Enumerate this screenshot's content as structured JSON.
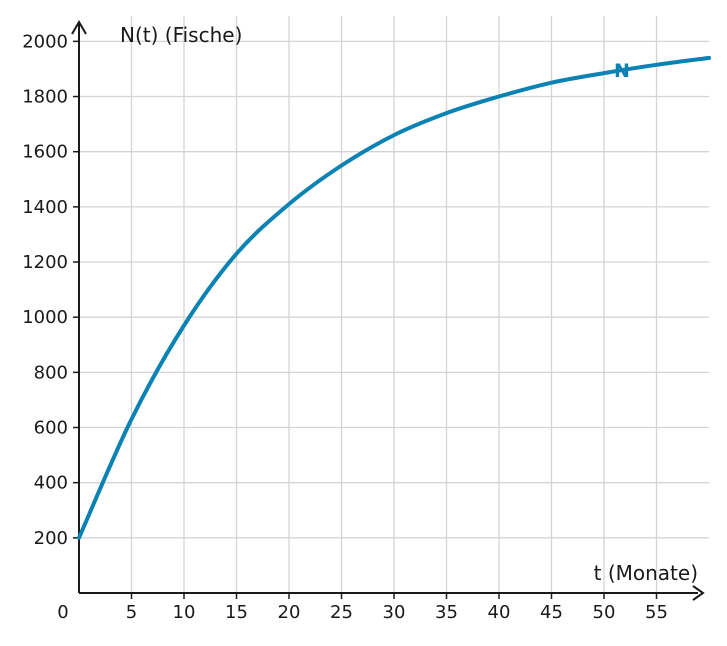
{
  "chart_data": {
    "type": "line",
    "title": "",
    "xlabel": "t (Monate)",
    "ylabel": "N(t) (Fische)",
    "origin_label": "0",
    "xlim": [
      0,
      60
    ],
    "ylim": [
      0,
      2150
    ],
    "x_ticks": [
      5,
      10,
      15,
      20,
      25,
      30,
      35,
      40,
      45,
      50,
      55
    ],
    "x_tick_labels": [
      "5",
      "10",
      "15",
      "20",
      "25",
      "30",
      "35",
      "40",
      "45",
      "50",
      "55"
    ],
    "y_ticks": [
      200,
      400,
      600,
      800,
      1000,
      1200,
      1400,
      1600,
      1800,
      2000
    ],
    "y_tick_labels": [
      "200",
      "400",
      "600",
      "800",
      "1000",
      "1200",
      "1400",
      "1600",
      "1800",
      "2000"
    ],
    "grid": true,
    "series": [
      {
        "name": "N",
        "color": "#0a82b4",
        "x": [
          0,
          5,
          10,
          15,
          20,
          25,
          30,
          35,
          40,
          45,
          50,
          55,
          60
        ],
        "y": [
          200,
          630,
          970,
          1230,
          1410,
          1550,
          1660,
          1740,
          1800,
          1850,
          1885,
          1915,
          1940
        ]
      }
    ]
  }
}
